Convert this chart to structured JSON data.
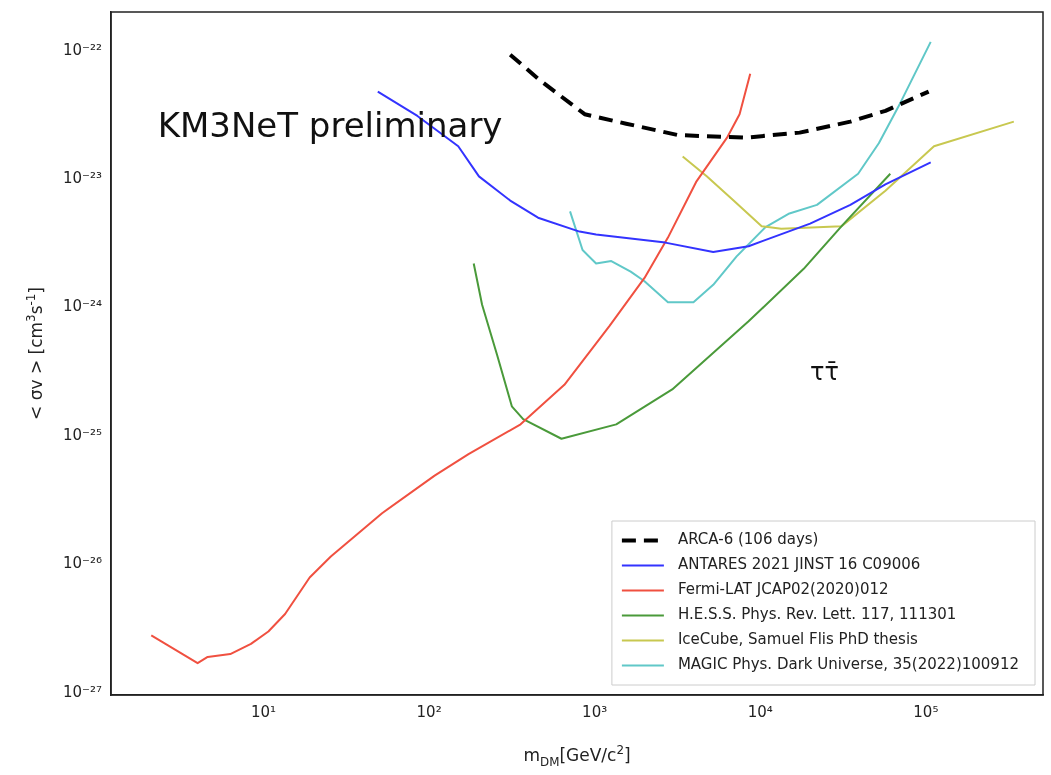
{
  "chart_data": {
    "type": "line",
    "xlabel": "m$_{DM}$[GeV/c$^{2}$]",
    "ylabel": "< σv > [cm$^{3}$s$^{-1}$]",
    "log": "xy",
    "xlim": [
      1.2,
      510000
    ],
    "ylim": [
      9.6e-28,
      2e-22
    ],
    "xticks": [
      {
        "value": 10,
        "label": "10¹"
      },
      {
        "value": 100,
        "label": "10²"
      },
      {
        "value": 1000,
        "label": "10³"
      },
      {
        "value": 10000,
        "label": "10⁴"
      },
      {
        "value": 100000,
        "label": "10⁵"
      }
    ],
    "yticks": [
      {
        "value": 1e-27,
        "label": "10⁻²⁷"
      },
      {
        "value": 1e-26,
        "label": "10⁻²⁶"
      },
      {
        "value": 1e-25,
        "label": "10⁻²⁵"
      },
      {
        "value": 1e-24,
        "label": "10⁻²⁴"
      },
      {
        "value": 1e-23,
        "label": "10⁻²³"
      },
      {
        "value": 1e-22,
        "label": "10⁻²²"
      }
    ],
    "grid": false,
    "legend": "bottom right",
    "marker": "none",
    "annotations": [
      "KM3NeT preliminary",
      "ττ̄"
    ],
    "series": [
      {
        "name": "ARCA-6 (106 days)",
        "color": "#000000",
        "line_style": "dashed",
        "x": [
          309,
          473,
          870,
          1550,
          3180,
          8100,
          17300,
          35000,
          57000,
          104000
        ],
        "values": [
          9.3e-23,
          5.8e-23,
          3.2e-23,
          2.7e-23,
          2.2e-23,
          2.1e-23,
          2.3e-23,
          2.8e-23,
          3.4e-23,
          4.8e-23
        ]
      },
      {
        "name": "ANTARES 2021 JINST 16 C09006",
        "color": "#3333ff",
        "x": [
          49,
          85,
          150,
          200,
          309,
          455,
          810,
          1020,
          2670,
          5200,
          8500,
          20000,
          35000,
          57000,
          107000
        ],
        "values": [
          4.8e-23,
          3.1e-23,
          1.8e-23,
          1.05e-23,
          6.8e-24,
          5e-24,
          3.9e-24,
          3.7e-24,
          3.2e-24,
          2.7e-24,
          3e-24,
          4.5e-24,
          6.3e-24,
          9.1e-24,
          1.35e-23
        ]
      },
      {
        "name": "Fermi-LAT JCAP02(2020)012",
        "color": "#f05040",
        "x": [
          2.1,
          4.0,
          4.6,
          6.3,
          8.4,
          10.7,
          13.5,
          19,
          25.5,
          52,
          108,
          173,
          357,
          656,
          1230,
          2000,
          2770,
          4100,
          6300,
          7500,
          8700
        ],
        "values": [
          2.8e-27,
          1.7e-27,
          1.9e-27,
          2e-27,
          2.4e-27,
          3e-27,
          4.1e-27,
          7.9e-27,
          1.15e-26,
          2.5e-26,
          4.9e-26,
          7.2e-26,
          1.23e-25,
          2.5e-25,
          7.2e-25,
          1.7e-24,
          3.5e-24,
          9.5e-24,
          2.1e-23,
          3.2e-23,
          6.6e-23
        ]
      },
      {
        "name": "H.E.S.S. Phys. Rev. Lett. 117, 111301",
        "color": "#4a9a3a",
        "x": [
          186,
          209,
          257,
          316,
          370,
          630,
          1350,
          2940,
          8500,
          18300,
          31000,
          61000
        ],
        "values": [
          2.2e-24,
          1.05e-24,
          4.3e-25,
          1.7e-25,
          1.35e-25,
          9.5e-26,
          1.23e-25,
          2.3e-25,
          7.8e-25,
          2e-24,
          4.3e-24,
          1.1e-23
        ]
      },
      {
        "name": "IceCube, Samuel Flis PhD thesis",
        "color": "#c8c850",
        "x": [
          3400,
          4750,
          6900,
          10200,
          13400,
          31000,
          57000,
          112000,
          340000
        ],
        "values": [
          1.5e-23,
          1.05e-23,
          6.8e-24,
          4.3e-24,
          4.1e-24,
          4.3e-24,
          8.1e-24,
          1.8e-23,
          2.8e-23
        ]
      },
      {
        "name": "MAGIC Phys. Dark Universe, 35(2022)100912",
        "color": "#60c8c8",
        "x": [
          710,
          845,
          1020,
          1260,
          1650,
          2000,
          2770,
          3950,
          5200,
          7200,
          10700,
          15000,
          22000,
          39000,
          52000,
          70000,
          107000
        ],
        "values": [
          5.6e-24,
          2.8e-24,
          2.2e-24,
          2.3e-24,
          1.9e-24,
          1.6e-24,
          1.1e-24,
          1.1e-24,
          1.5e-24,
          2.5e-24,
          4.2e-24,
          5.4e-24,
          6.3e-24,
          1.1e-23,
          1.9e-23,
          3.9e-23,
          1.17e-22
        ]
      }
    ]
  }
}
